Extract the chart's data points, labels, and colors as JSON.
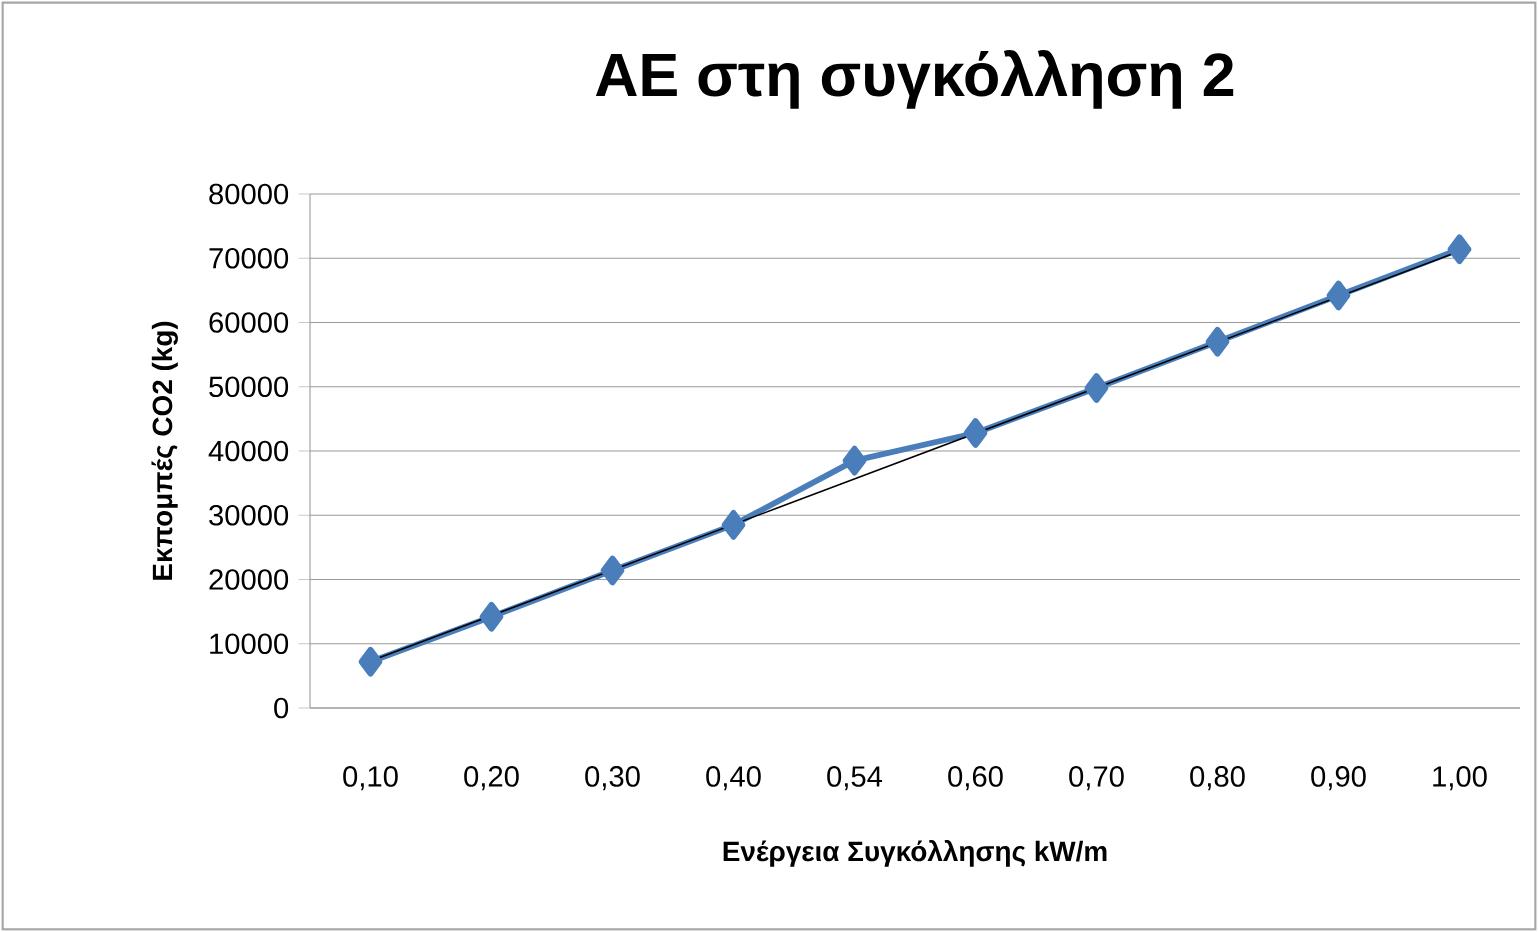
{
  "chart_data": {
    "type": "line",
    "title": "ΑΕ στη συγκόλληση 2",
    "xlabel": "Ενέργεια Συγκόλλησης kW/m",
    "ylabel": "Εκπομπές CO2  (kg)",
    "categories": [
      "0,10",
      "0,20",
      "0,30",
      "0,40",
      "0,54",
      "0,60",
      "0,70",
      "0,80",
      "0,90",
      "1,00"
    ],
    "series": [
      {
        "color": "#4a7ebb",
        "values": [
          7200,
          14200,
          21400,
          28500,
          38500,
          42800,
          49800,
          57000,
          64200,
          71400
        ]
      },
      {
        "type": "line",
        "color": "#000000",
        "marker": "none",
        "x": [
          "0,10",
          "1,00"
        ],
        "values": [
          7300,
          71100
        ]
      }
    ],
    "ylim": [
      0,
      80000
    ],
    "yticks": [
      0,
      10000,
      20000,
      30000,
      40000,
      50000,
      60000,
      70000,
      80000
    ],
    "grid": "y",
    "marker": "diamond",
    "line_style": "solid"
  }
}
